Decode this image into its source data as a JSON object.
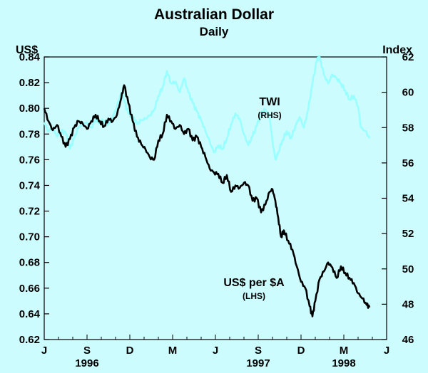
{
  "chart_data": {
    "type": "line",
    "title": "Australian Dollar",
    "subtitle": "Daily",
    "left_axis": {
      "label": "US$",
      "ylim": [
        0.62,
        0.84
      ],
      "ticks": [
        "0.62",
        "0.64",
        "0.66",
        "0.68",
        "0.70",
        "0.72",
        "0.74",
        "0.76",
        "0.78",
        "0.80",
        "0.82",
        "0.84"
      ]
    },
    "right_axis": {
      "label": "Index",
      "ylim": [
        46,
        62
      ],
      "ticks": [
        "46",
        "48",
        "50",
        "52",
        "54",
        "56",
        "58",
        "60",
        "62"
      ]
    },
    "x_axis": {
      "range_months": [
        0,
        24
      ],
      "month_ticks": [
        {
          "label": "J",
          "m": 0
        },
        {
          "label": "S",
          "m": 3
        },
        {
          "label": "D",
          "m": 6
        },
        {
          "label": "M",
          "m": 9
        },
        {
          "label": "J",
          "m": 12
        },
        {
          "label": "S",
          "m": 15
        },
        {
          "label": "D",
          "m": 18
        },
        {
          "label": "M",
          "m": 21
        },
        {
          "label": "J",
          "m": 24
        }
      ],
      "years": [
        {
          "label": "1996",
          "m": 3
        },
        {
          "label": "1997",
          "m": 15
        },
        {
          "label": "1998",
          "m": 21
        }
      ]
    },
    "series": [
      {
        "name": "US$ per $A",
        "note": "(LHS)",
        "axis": "left",
        "color": "#000000",
        "points": [
          [
            0.0,
            0.8
          ],
          [
            0.3,
            0.79
          ],
          [
            0.6,
            0.783
          ],
          [
            0.9,
            0.787
          ],
          [
            1.2,
            0.778
          ],
          [
            1.5,
            0.77
          ],
          [
            1.8,
            0.776
          ],
          [
            2.1,
            0.785
          ],
          [
            2.4,
            0.79
          ],
          [
            2.7,
            0.788
          ],
          [
            3.0,
            0.784
          ],
          [
            3.3,
            0.79
          ],
          [
            3.6,
            0.795
          ],
          [
            3.9,
            0.79
          ],
          [
            4.2,
            0.786
          ],
          [
            4.5,
            0.792
          ],
          [
            4.8,
            0.79
          ],
          [
            5.1,
            0.795
          ],
          [
            5.4,
            0.808
          ],
          [
            5.6,
            0.818
          ],
          [
            5.9,
            0.804
          ],
          [
            6.2,
            0.79
          ],
          [
            6.5,
            0.778
          ],
          [
            6.8,
            0.772
          ],
          [
            7.1,
            0.768
          ],
          [
            7.4,
            0.762
          ],
          [
            7.7,
            0.76
          ],
          [
            8.0,
            0.775
          ],
          [
            8.3,
            0.78
          ],
          [
            8.6,
            0.795
          ],
          [
            8.9,
            0.79
          ],
          [
            9.2,
            0.784
          ],
          [
            9.5,
            0.787
          ],
          [
            9.8,
            0.78
          ],
          [
            10.1,
            0.784
          ],
          [
            10.4,
            0.775
          ],
          [
            10.7,
            0.778
          ],
          [
            11.0,
            0.77
          ],
          [
            11.3,
            0.762
          ],
          [
            11.6,
            0.753
          ],
          [
            11.9,
            0.75
          ],
          [
            12.2,
            0.749
          ],
          [
            12.5,
            0.742
          ],
          [
            12.8,
            0.748
          ],
          [
            13.1,
            0.735
          ],
          [
            13.4,
            0.74
          ],
          [
            13.7,
            0.738
          ],
          [
            14.0,
            0.742
          ],
          [
            14.3,
            0.74
          ],
          [
            14.6,
            0.728
          ],
          [
            14.9,
            0.73
          ],
          [
            15.2,
            0.719
          ],
          [
            15.5,
            0.725
          ],
          [
            15.8,
            0.735
          ],
          [
            16.0,
            0.737
          ],
          [
            16.2,
            0.728
          ],
          [
            16.4,
            0.715
          ],
          [
            16.6,
            0.7
          ],
          [
            16.8,
            0.705
          ],
          [
            17.1,
            0.697
          ],
          [
            17.4,
            0.69
          ],
          [
            17.7,
            0.677
          ],
          [
            18.0,
            0.665
          ],
          [
            18.3,
            0.66
          ],
          [
            18.6,
            0.646
          ],
          [
            18.8,
            0.638
          ],
          [
            19.0,
            0.65
          ],
          [
            19.3,
            0.667
          ],
          [
            19.6,
            0.673
          ],
          [
            19.9,
            0.68
          ],
          [
            20.2,
            0.676
          ],
          [
            20.5,
            0.668
          ],
          [
            20.8,
            0.677
          ],
          [
            21.1,
            0.672
          ],
          [
            21.4,
            0.668
          ],
          [
            21.7,
            0.664
          ],
          [
            22.0,
            0.656
          ],
          [
            22.3,
            0.652
          ],
          [
            22.6,
            0.647
          ],
          [
            22.8,
            0.645
          ]
        ]
      },
      {
        "name": "TWI",
        "note": "(RHS)",
        "axis": "right",
        "color": "#99ffff",
        "points": [
          [
            0.0,
            58.3
          ],
          [
            0.3,
            57.8
          ],
          [
            0.6,
            58.0
          ],
          [
            0.9,
            57.5
          ],
          [
            1.2,
            57.8
          ],
          [
            1.5,
            57.7
          ],
          [
            1.8,
            56.8
          ],
          [
            2.1,
            57.4
          ],
          [
            2.4,
            58.0
          ],
          [
            2.7,
            58.2
          ],
          [
            3.0,
            58.3
          ],
          [
            3.3,
            58.0
          ],
          [
            3.6,
            58.5
          ],
          [
            3.9,
            58.3
          ],
          [
            4.2,
            58.4
          ],
          [
            4.5,
            58.2
          ],
          [
            4.8,
            58.6
          ],
          [
            5.1,
            59.2
          ],
          [
            5.4,
            60.0
          ],
          [
            5.6,
            59.5
          ],
          [
            5.9,
            58.8
          ],
          [
            6.2,
            58.6
          ],
          [
            6.5,
            58.2
          ],
          [
            6.8,
            58.4
          ],
          [
            7.1,
            58.5
          ],
          [
            7.4,
            58.7
          ],
          [
            7.7,
            59.0
          ],
          [
            8.0,
            59.8
          ],
          [
            8.3,
            60.3
          ],
          [
            8.6,
            61.2
          ],
          [
            8.9,
            60.5
          ],
          [
            9.2,
            60.6
          ],
          [
            9.5,
            60.0
          ],
          [
            9.8,
            60.8
          ],
          [
            10.1,
            60.0
          ],
          [
            10.4,
            59.4
          ],
          [
            10.7,
            58.9
          ],
          [
            11.0,
            58.4
          ],
          [
            11.3,
            57.8
          ],
          [
            11.6,
            57.2
          ],
          [
            11.9,
            56.6
          ],
          [
            12.2,
            57.0
          ],
          [
            12.5,
            56.8
          ],
          [
            12.8,
            57.4
          ],
          [
            13.1,
            58.2
          ],
          [
            13.4,
            58.8
          ],
          [
            13.7,
            58.5
          ],
          [
            14.0,
            57.6
          ],
          [
            14.3,
            57.0
          ],
          [
            14.6,
            57.5
          ],
          [
            14.9,
            58.1
          ],
          [
            15.2,
            58.8
          ],
          [
            15.5,
            59.0
          ],
          [
            15.8,
            58.6
          ],
          [
            16.0,
            57.2
          ],
          [
            16.2,
            56.2
          ],
          [
            16.4,
            56.6
          ],
          [
            16.7,
            57.3
          ],
          [
            17.0,
            57.8
          ],
          [
            17.3,
            57.4
          ],
          [
            17.6,
            58.1
          ],
          [
            17.9,
            58.6
          ],
          [
            18.2,
            58.0
          ],
          [
            18.5,
            59.0
          ],
          [
            18.8,
            60.5
          ],
          [
            19.1,
            61.8
          ],
          [
            19.3,
            62.0
          ],
          [
            19.6,
            61.0
          ],
          [
            19.9,
            60.5
          ],
          [
            20.2,
            61.0
          ],
          [
            20.5,
            60.8
          ],
          [
            20.8,
            60.5
          ],
          [
            21.1,
            60.1
          ],
          [
            21.4,
            59.6
          ],
          [
            21.7,
            59.8
          ],
          [
            22.0,
            59.2
          ],
          [
            22.2,
            58.0
          ],
          [
            22.5,
            57.8
          ],
          [
            22.8,
            57.4
          ]
        ]
      }
    ],
    "annotations": {
      "twi_label": "TWI",
      "twi_note": "(RHS)",
      "usd_label": "US$ per $A",
      "usd_note": "(LHS)"
    },
    "grid": false
  },
  "colors": {
    "background": "#cdfcfe",
    "usd_line": "#000000",
    "twi_line": "#99ffff",
    "axis": "#000000"
  }
}
